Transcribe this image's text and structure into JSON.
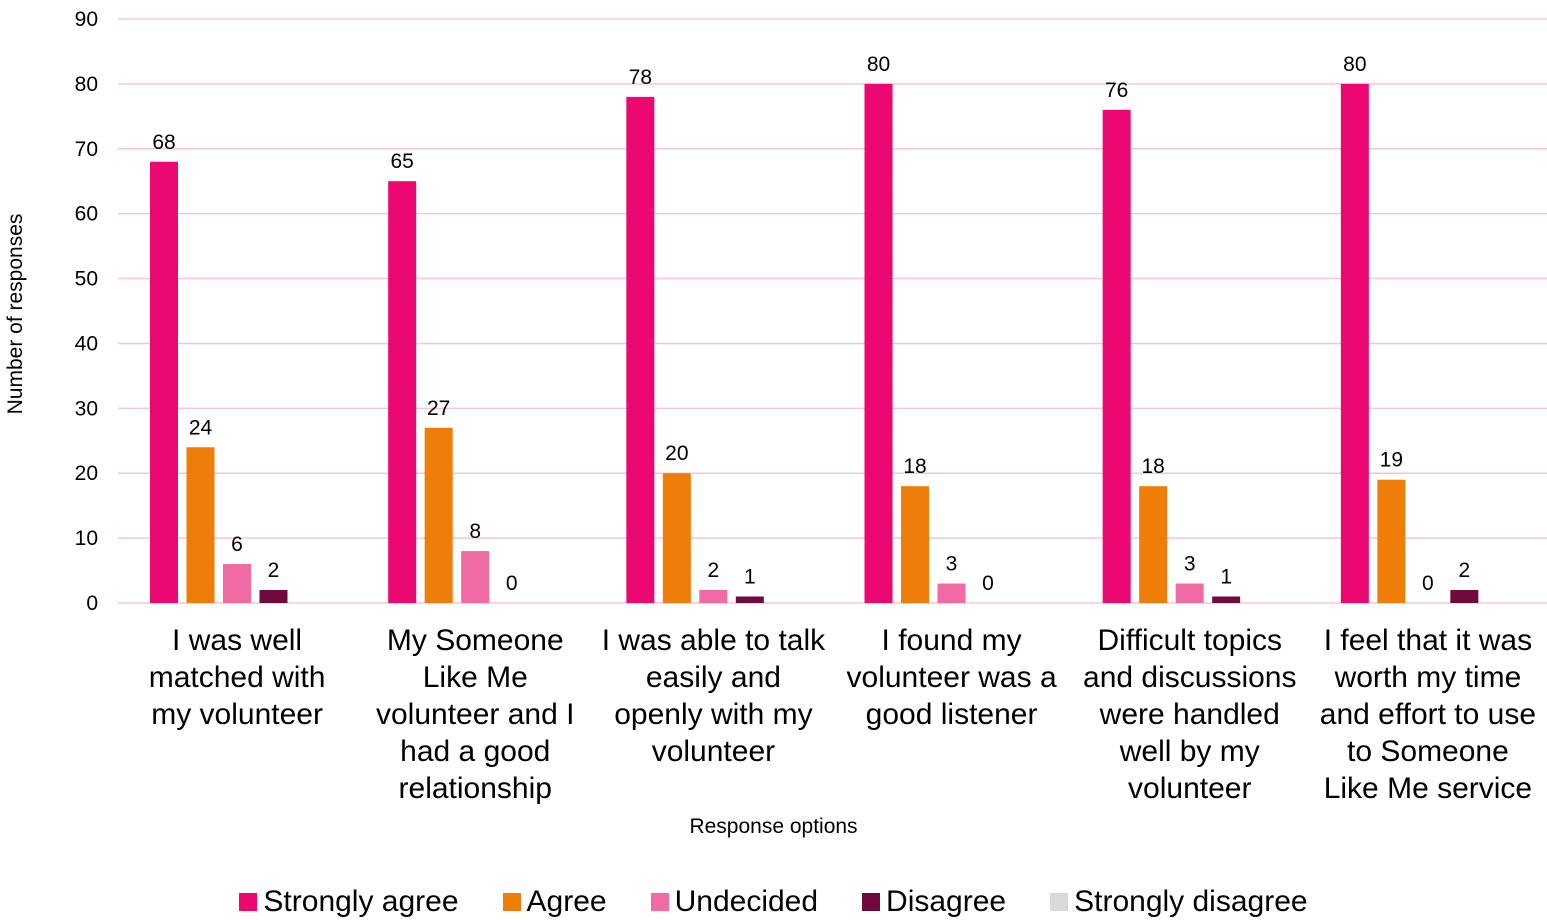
{
  "chart_data": {
    "type": "bar",
    "title": "",
    "xlabel": "Response options",
    "ylabel": "Number of responses",
    "ylim": [
      0,
      90
    ],
    "yticks": [
      0,
      10,
      20,
      30,
      40,
      50,
      60,
      70,
      80,
      90
    ],
    "grid": true,
    "legend_position": "bottom",
    "categories": [
      "I was well matched with my volunteer",
      "My Someone Like Me volunteer and I had a good relationship",
      "I was able to talk easily and openly with my volunteer",
      "I found my volunteer was a good listener",
      "Difficult topics and discussions were handled well by my volunteer",
      "I feel that it was worth my time and effort to use to Someone Like Me service"
    ],
    "category_lines": [
      [
        "I was well",
        "matched with",
        "my volunteer"
      ],
      [
        "My Someone",
        "Like Me",
        "volunteer and I",
        "had a good",
        "relationship"
      ],
      [
        "I was able to talk",
        "easily and",
        "openly with my",
        "volunteer"
      ],
      [
        "I found my",
        "volunteer was a",
        "good listener"
      ],
      [
        "Difficult topics",
        "and discussions",
        "were handled",
        "well by my",
        "volunteer"
      ],
      [
        "I feel that it was",
        "worth my time",
        "and effort to use",
        "to Someone",
        "Like Me service"
      ]
    ],
    "series": [
      {
        "name": "Strongly agree",
        "color": "#EC0871",
        "values": [
          68,
          65,
          78,
          80,
          76,
          80
        ],
        "labels": [
          "68",
          "65",
          "78",
          "80",
          "76",
          "80"
        ]
      },
      {
        "name": "Agree",
        "color": "#EE7D0A",
        "values": [
          24,
          27,
          20,
          18,
          18,
          19
        ],
        "labels": [
          "24",
          "27",
          "20",
          "18",
          "18",
          "19"
        ]
      },
      {
        "name": "Undecided",
        "color": "#F06BA3",
        "values": [
          6,
          8,
          2,
          3,
          3,
          0
        ],
        "labels": [
          "6",
          "8",
          "2",
          "3",
          "3",
          "0"
        ]
      },
      {
        "name": "Disagree",
        "color": "#6E0A3C",
        "values": [
          2,
          0,
          1,
          0,
          1,
          2
        ],
        "labels": [
          "2",
          "0",
          "1",
          "0",
          "1",
          "2"
        ]
      },
      {
        "name": "Strongly disagree",
        "color": "#D9D9D9",
        "values": [
          0,
          0,
          0,
          0,
          0,
          0
        ],
        "labels": [
          "",
          "",
          "",
          "",
          "",
          ""
        ]
      }
    ],
    "gridline_color": "#F5C6DA",
    "axis_line_color": "#F5C6DA"
  }
}
